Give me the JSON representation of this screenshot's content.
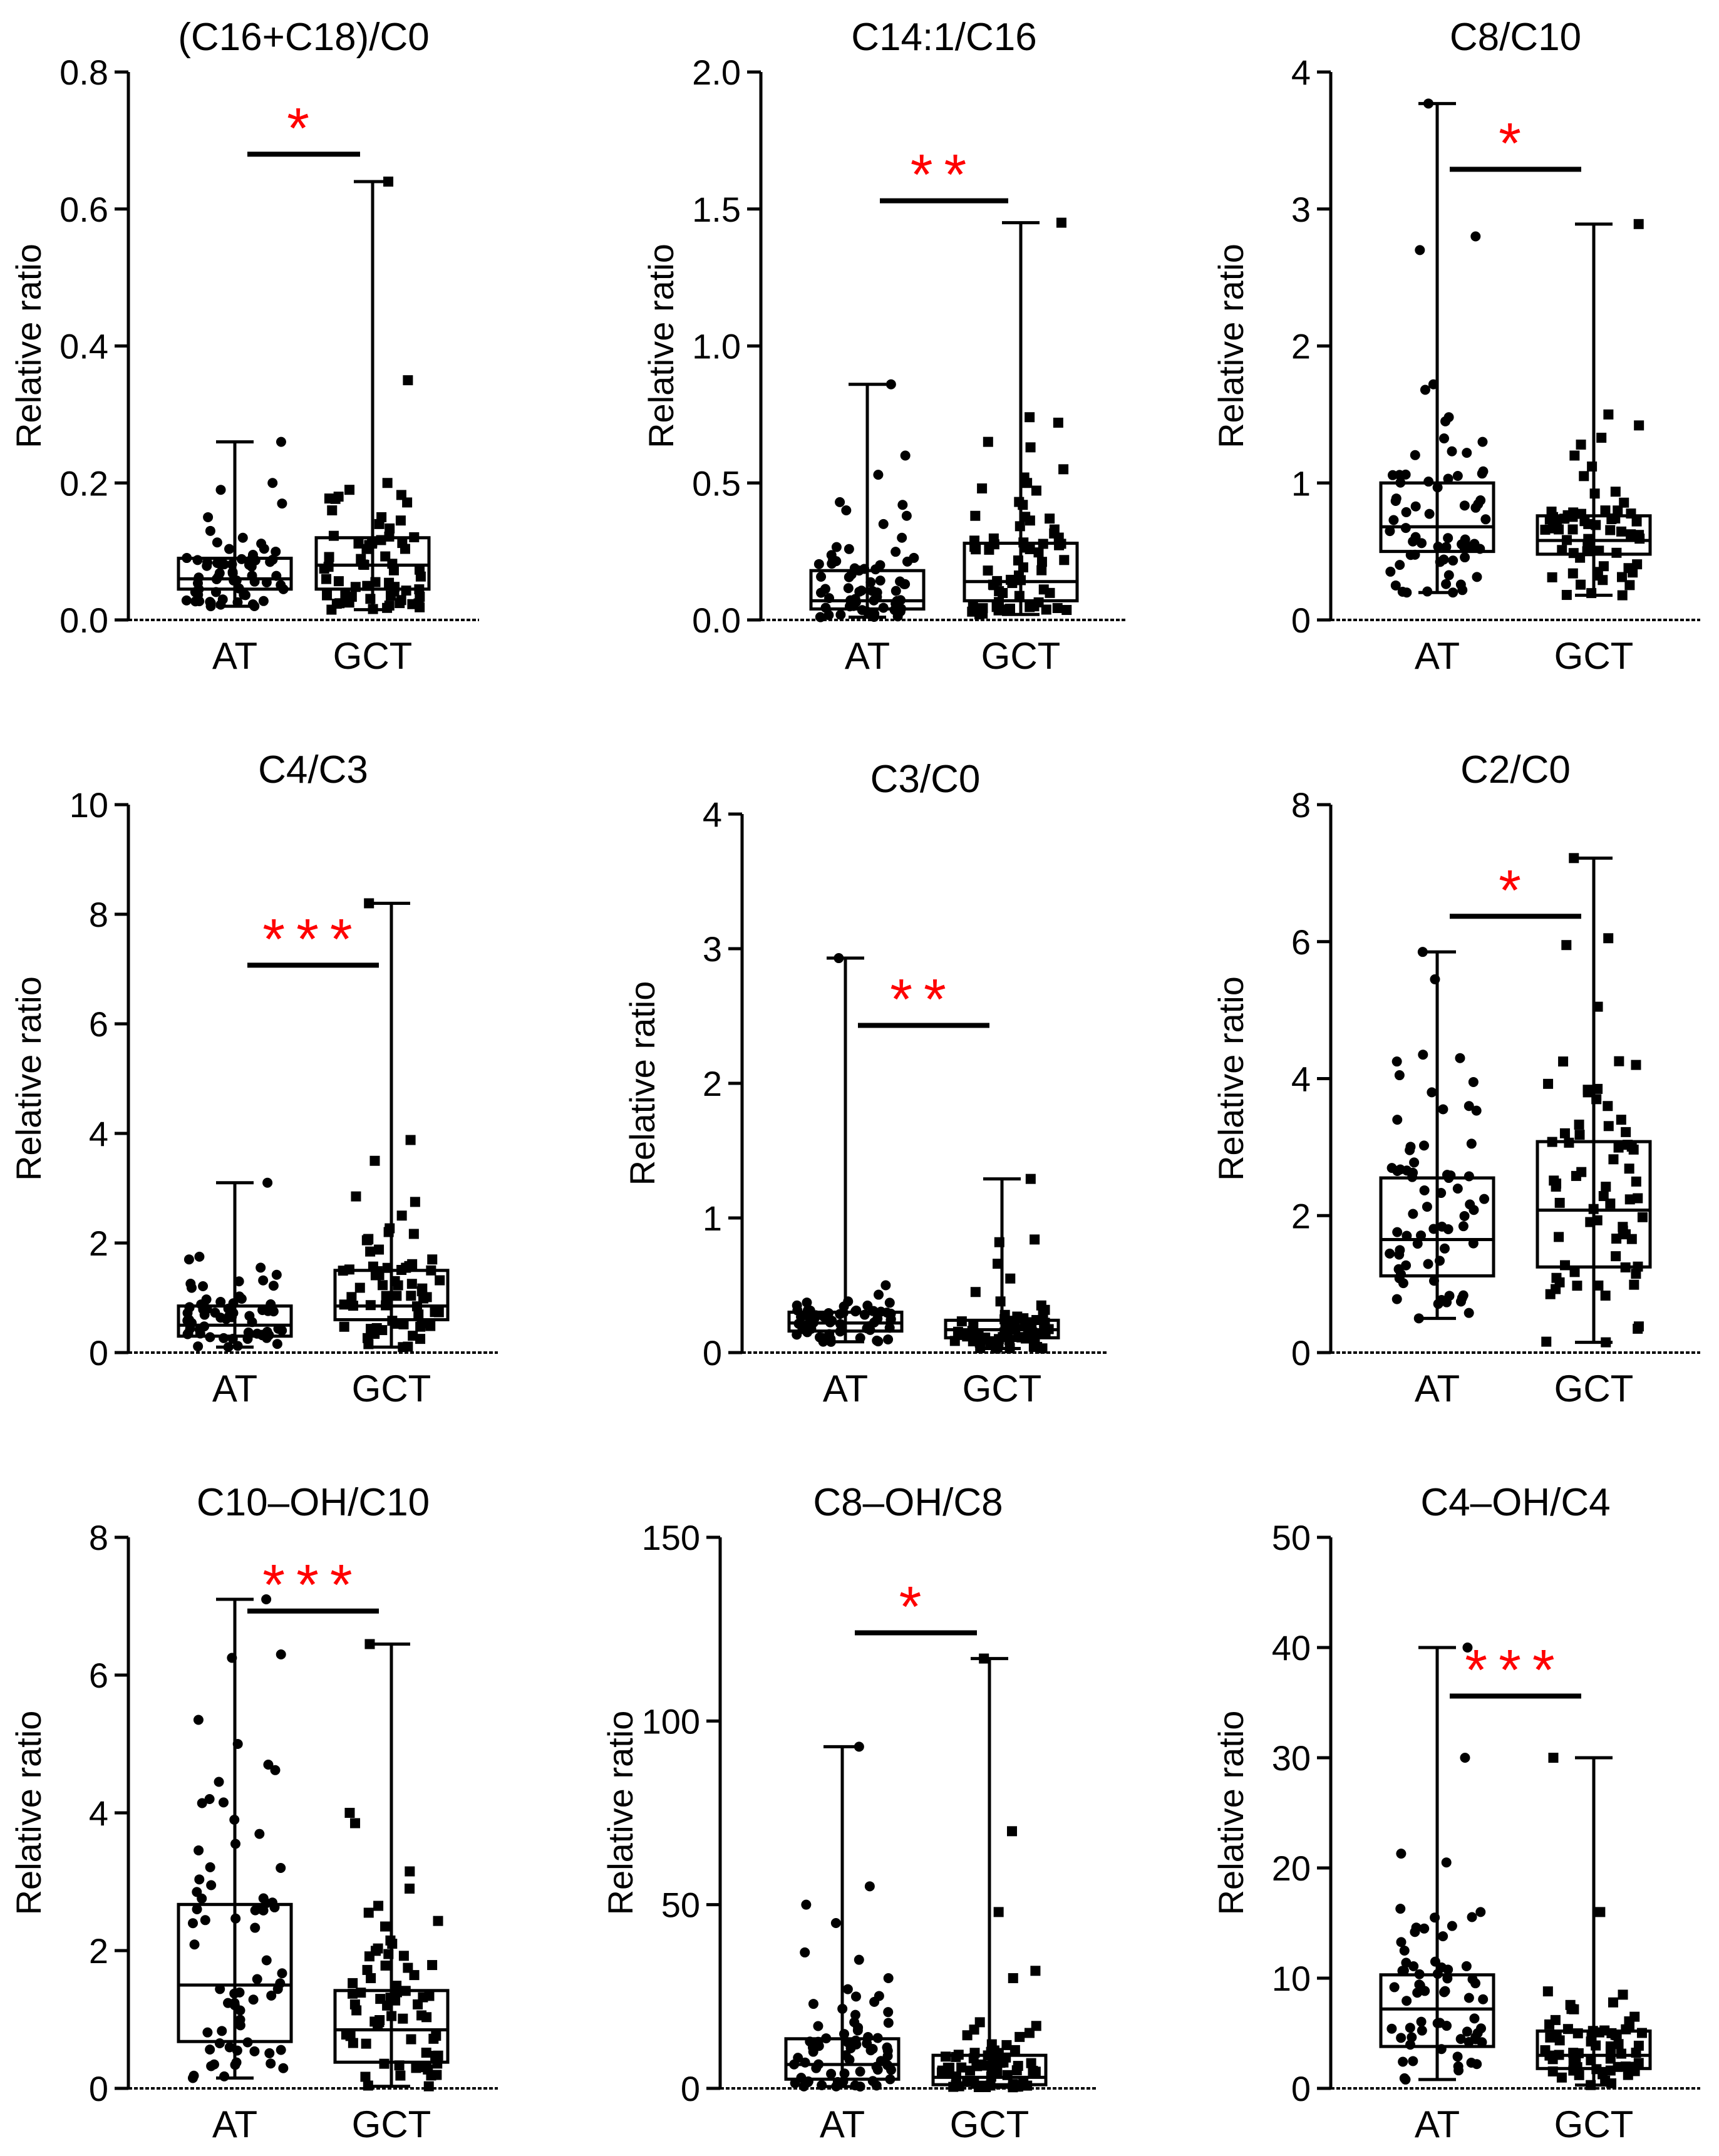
{
  "figure": {
    "ylabel": "Relative ratio",
    "colors": {
      "ink": "#000000",
      "sig": "#ff0000",
      "bg": "#ffffff"
    }
  },
  "chart_data": [
    {
      "type": "box",
      "title": "(C16+C18)/C0",
      "ylabel": "Relative ratio",
      "categories": [
        "AT",
        "GCT"
      ],
      "ylim": [
        0,
        0.8
      ],
      "yticks": [
        0,
        0.2,
        0.4,
        0.6,
        0.8
      ],
      "ytick_labels": [
        "0.0",
        "0.2",
        "0.4",
        "0.6",
        "0.8"
      ],
      "boxes": [
        {
          "group": "AT",
          "min": 0.02,
          "q1": 0.045,
          "median": 0.06,
          "q3": 0.09,
          "max": 0.26,
          "markers": "circle",
          "outliers_shown": [
            0.2,
            0.19,
            0.17,
            0.15,
            0.13,
            0.12
          ]
        },
        {
          "group": "GCT",
          "min": 0.015,
          "q1": 0.045,
          "median": 0.08,
          "q3": 0.12,
          "max": 0.64,
          "markers": "square",
          "outliers_shown": [
            0.35,
            0.2,
            0.19,
            0.18,
            0.16,
            0.15,
            0.14
          ]
        }
      ],
      "significance": {
        "label": "*",
        "between": [
          "AT",
          "GCT"
        ],
        "y": 0.68
      }
    },
    {
      "type": "box",
      "title": "C14:1/C16",
      "ylabel": "Relative ratio",
      "categories": [
        "AT",
        "GCT"
      ],
      "ylim": [
        0,
        2.0
      ],
      "yticks": [
        0,
        0.5,
        1.0,
        1.5,
        2.0
      ],
      "ytick_labels": [
        "0.0",
        "0.5",
        "1.0",
        "1.5",
        "2.0"
      ],
      "boxes": [
        {
          "group": "AT",
          "min": 0.01,
          "q1": 0.04,
          "median": 0.07,
          "q3": 0.18,
          "max": 0.86,
          "markers": "circle",
          "outliers_shown": [
            0.6,
            0.53,
            0.43,
            0.42,
            0.4,
            0.38,
            0.35,
            0.3
          ]
        },
        {
          "group": "GCT",
          "min": 0.02,
          "q1": 0.07,
          "median": 0.14,
          "q3": 0.28,
          "max": 1.45,
          "markers": "square",
          "outliers_shown": [
            0.74,
            0.72,
            0.65,
            0.63,
            0.55,
            0.52,
            0.5,
            0.48,
            0.42,
            0.38
          ]
        }
      ],
      "significance": {
        "label": "**",
        "between": [
          "AT",
          "GCT"
        ],
        "y": 1.53
      }
    },
    {
      "type": "box",
      "title": "C8/C10",
      "ylabel": "Relative ratio",
      "categories": [
        "AT",
        "GCT"
      ],
      "ylim": [
        0,
        4
      ],
      "yticks": [
        0,
        1,
        2,
        3,
        4
      ],
      "ytick_labels": [
        "0",
        "1",
        "2",
        "3",
        "4"
      ],
      "boxes": [
        {
          "group": "AT",
          "min": 0.2,
          "q1": 0.5,
          "median": 0.68,
          "q3": 1.0,
          "max": 3.77,
          "markers": "circle",
          "outliers_shown": [
            2.8,
            2.7,
            1.72,
            1.68,
            1.48,
            1.45,
            1.3,
            1.22
          ]
        },
        {
          "group": "GCT",
          "min": 0.18,
          "q1": 0.48,
          "median": 0.58,
          "q3": 0.76,
          "max": 2.89,
          "markers": "square",
          "outliers_shown": [
            1.5,
            1.42,
            1.33,
            1.28,
            1.2,
            1.12,
            1.05
          ]
        }
      ],
      "significance": {
        "label": "*",
        "between": [
          "AT",
          "GCT"
        ],
        "y": 3.29
      }
    },
    {
      "type": "box",
      "title": "C4/C3",
      "ylabel": "Relative ratio",
      "categories": [
        "AT",
        "GCT"
      ],
      "ylim": [
        0,
        10
      ],
      "yticks": [
        0,
        2,
        4,
        6,
        8,
        10
      ],
      "ytick_labels": [
        "0",
        "2",
        "4",
        "6",
        "8",
        "10"
      ],
      "boxes": [
        {
          "group": "AT",
          "min": 0.1,
          "q1": 0.3,
          "median": 0.5,
          "q3": 0.85,
          "max": 3.1,
          "markers": "circle",
          "outliers_shown": [
            1.75,
            1.7,
            1.55,
            1.42,
            1.3,
            1.22
          ]
        },
        {
          "group": "GCT",
          "min": 0.1,
          "q1": 0.6,
          "median": 0.85,
          "q3": 1.5,
          "max": 8.2,
          "markers": "square",
          "outliers_shown": [
            3.88,
            3.5,
            2.85,
            2.75,
            2.5,
            2.2,
            2.05,
            1.88,
            1.7
          ]
        }
      ],
      "significance": {
        "label": "***",
        "between": [
          "AT",
          "GCT"
        ],
        "y": 7.07
      }
    },
    {
      "type": "box",
      "title": "C3/C0",
      "ylabel": "Relative ratio",
      "categories": [
        "AT",
        "GCT"
      ],
      "ylim": [
        0,
        4
      ],
      "yticks": [
        0,
        1,
        2,
        3,
        4
      ],
      "ytick_labels": [
        "0",
        "1",
        "2",
        "3",
        "4"
      ],
      "boxes": [
        {
          "group": "AT",
          "min": 0.08,
          "q1": 0.16,
          "median": 0.22,
          "q3": 0.3,
          "max": 2.93,
          "markers": "circle",
          "outliers_shown": [
            0.5,
            0.43,
            0.38,
            0.35
          ]
        },
        {
          "group": "GCT",
          "min": 0.03,
          "q1": 0.11,
          "median": 0.17,
          "q3": 0.24,
          "max": 1.29,
          "markers": "square",
          "outliers_shown": [
            0.84,
            0.82,
            0.66,
            0.55,
            0.45,
            0.38,
            0.35
          ]
        }
      ],
      "significance": {
        "label": "**",
        "between": [
          "AT",
          "GCT"
        ],
        "y": 2.43
      }
    },
    {
      "type": "box",
      "title": "C2/C0",
      "ylabel": "Relative ratio",
      "categories": [
        "AT",
        "GCT"
      ],
      "ylim": [
        0,
        8
      ],
      "yticks": [
        0,
        2,
        4,
        6,
        8
      ],
      "ytick_labels": [
        "0",
        "2",
        "4",
        "6",
        "8"
      ],
      "boxes": [
        {
          "group": "AT",
          "min": 0.5,
          "q1": 1.12,
          "median": 1.65,
          "q3": 2.55,
          "max": 5.85,
          "markers": "circle",
          "outliers_shown": [
            5.45,
            4.35,
            4.3,
            4.25,
            4.05,
            3.95,
            3.8,
            3.6,
            3.4,
            3.05
          ]
        },
        {
          "group": "GCT",
          "min": 0.15,
          "q1": 1.25,
          "median": 2.08,
          "q3": 3.08,
          "max": 7.22,
          "markers": "square",
          "outliers_shown": [
            6.05,
            5.95,
            5.05,
            4.25,
            4.2,
            3.85,
            3.8,
            3.7,
            3.6,
            3.4
          ]
        }
      ],
      "significance": {
        "label": "*",
        "between": [
          "AT",
          "GCT"
        ],
        "y": 6.37
      }
    },
    {
      "type": "box",
      "title": "C10–OH/C10",
      "ylabel": "Relative ratio",
      "categories": [
        "AT",
        "GCT"
      ],
      "ylim": [
        0,
        8
      ],
      "yticks": [
        0,
        2,
        4,
        6,
        8
      ],
      "ytick_labels": [
        "0",
        "2",
        "4",
        "6",
        "8"
      ],
      "boxes": [
        {
          "group": "AT",
          "min": 0.15,
          "q1": 0.68,
          "median": 1.5,
          "q3": 2.67,
          "max": 7.1,
          "markers": "circle",
          "outliers_shown": [
            6.3,
            6.25,
            5.35,
            5.0,
            4.7,
            4.62,
            4.45,
            4.2,
            3.9,
            3.55,
            3.2,
            2.95
          ]
        },
        {
          "group": "GCT",
          "min": 0.03,
          "q1": 0.38,
          "median": 0.85,
          "q3": 1.42,
          "max": 6.45,
          "markers": "square",
          "outliers_shown": [
            4.0,
            3.85,
            3.15,
            2.9,
            2.65,
            2.55,
            2.35,
            2.1,
            1.95,
            1.75,
            1.6
          ]
        }
      ],
      "significance": {
        "label": "***",
        "between": [
          "AT",
          "GCT"
        ],
        "y": 6.93
      }
    },
    {
      "type": "box",
      "title": "C8–OH/C8",
      "ylabel": "Relative ratio",
      "categories": [
        "AT",
        "GCT"
      ],
      "ylim": [
        0,
        150
      ],
      "yticks": [
        0,
        50,
        100,
        150
      ],
      "ytick_labels": [
        "0",
        "50",
        "100",
        "150"
      ],
      "boxes": [
        {
          "group": "AT",
          "min": 0.5,
          "q1": 2.5,
          "median": 6.5,
          "q3": 13.5,
          "max": 93,
          "markers": "circle",
          "outliers_shown": [
            55,
            50,
            45,
            37,
            35,
            30,
            27,
            25,
            23,
            20,
            18
          ]
        },
        {
          "group": "GCT",
          "min": 0.3,
          "q1": 1.0,
          "median": 3.0,
          "q3": 9.0,
          "max": 117,
          "markers": "square",
          "outliers_shown": [
            70,
            48,
            32,
            30,
            18,
            17,
            16,
            14,
            12
          ]
        }
      ],
      "significance": {
        "label": "*",
        "between": [
          "AT",
          "GCT"
        ],
        "y": 124
      }
    },
    {
      "type": "box",
      "title": "C4–OH/C4",
      "ylabel": "Relative ratio",
      "categories": [
        "AT",
        "GCT"
      ],
      "ylim": [
        0,
        50
      ],
      "yticks": [
        0,
        10,
        20,
        30,
        40,
        50
      ],
      "ytick_labels": [
        "0",
        "10",
        "20",
        "30",
        "40",
        "50"
      ],
      "boxes": [
        {
          "group": "AT",
          "min": 0.8,
          "q1": 3.8,
          "median": 7.2,
          "q3": 10.3,
          "max": 40,
          "markers": "circle",
          "outliers_shown": [
            30,
            21.3,
            20.5,
            16.3,
            16.0,
            15.5,
            14.5,
            13.8,
            12.5,
            11.5
          ]
        },
        {
          "group": "GCT",
          "min": 0.3,
          "q1": 1.8,
          "median": 3.0,
          "q3": 5.2,
          "max": 30,
          "markers": "square",
          "outliers_shown": [
            16.0,
            8.8,
            8.5,
            7.8,
            7.2,
            6.5,
            6.2,
            5.8
          ]
        }
      ],
      "significance": {
        "label": "***",
        "between": [
          "AT",
          "GCT"
        ],
        "y": 35.6
      }
    }
  ]
}
